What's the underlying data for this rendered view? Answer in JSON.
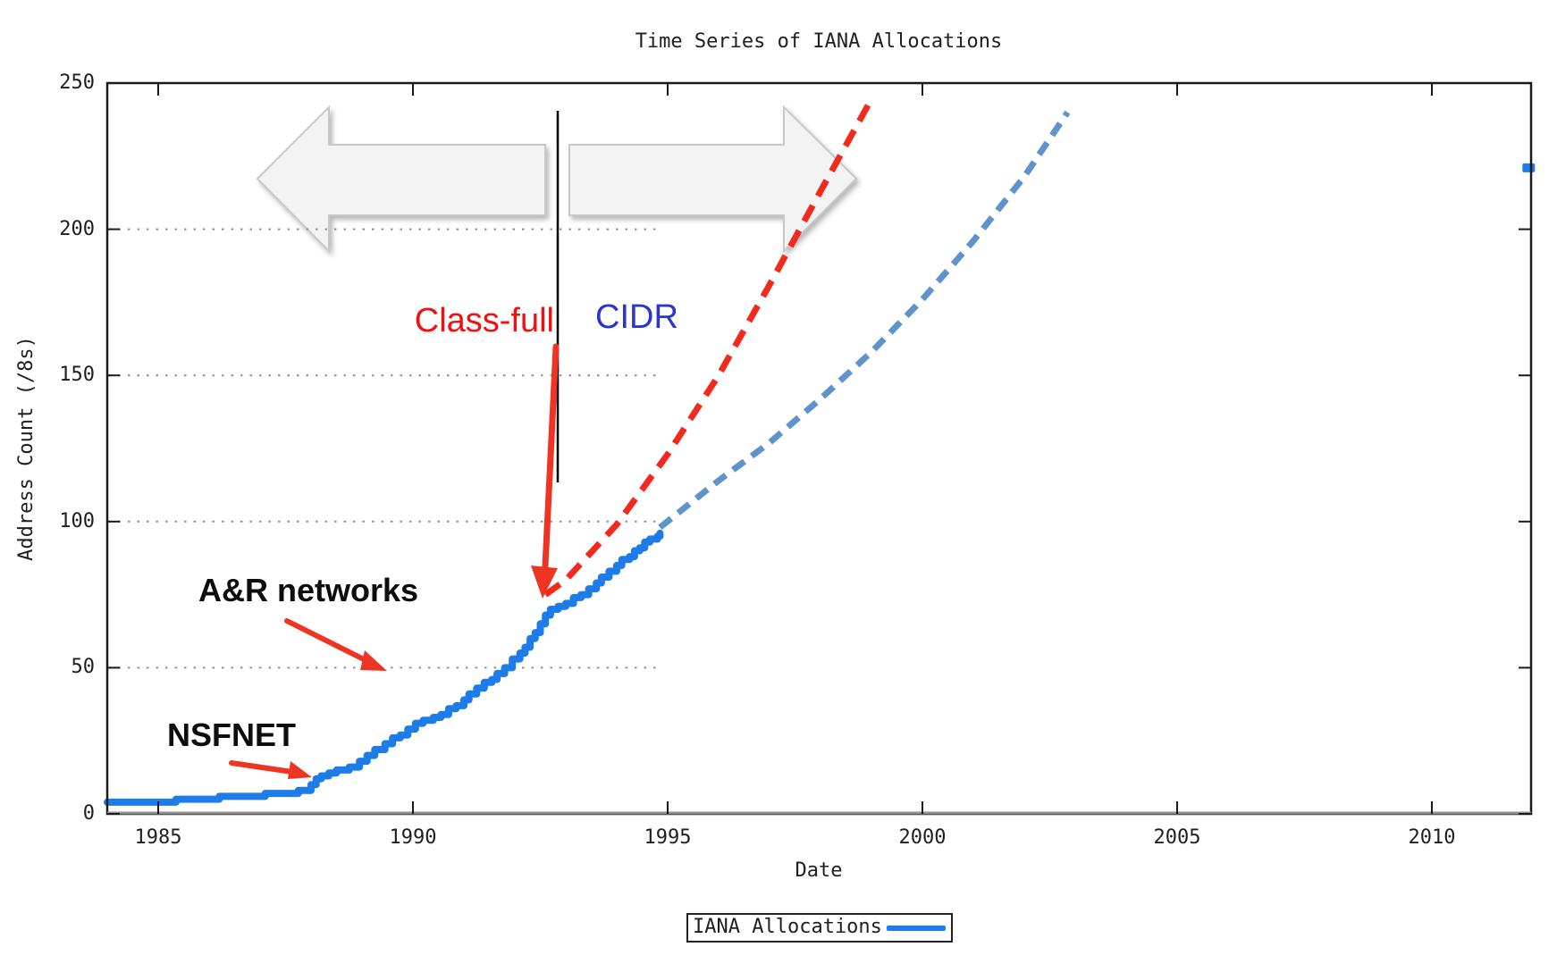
{
  "page": {
    "background": "#ffffff"
  },
  "chart_data": {
    "type": "line",
    "title": "Time Series of IANA Allocations",
    "xlabel": "Date",
    "ylabel": "Address Count (/8s)",
    "xlim": [
      1984,
      2012
    ],
    "ylim": [
      0,
      250
    ],
    "x_ticks": [
      1985,
      1990,
      1995,
      2000,
      2005,
      2010
    ],
    "y_ticks": [
      0,
      50,
      100,
      150,
      200,
      250
    ],
    "y_gridlines": [
      50,
      100,
      150,
      200
    ],
    "grid_style": "dotted horizontal lines, truncated where observed data ends (~1995)",
    "legend_position": "bottom-center-outside",
    "series": [
      {
        "name": "IANA Allocations",
        "style": "step-solid",
        "color": "#1e7ce8",
        "points": [
          [
            1984.0,
            4
          ],
          [
            1985.35,
            5
          ],
          [
            1986.2,
            6
          ],
          [
            1987.1,
            7
          ],
          [
            1987.75,
            8
          ],
          [
            1988.0,
            10
          ],
          [
            1988.1,
            12
          ],
          [
            1988.2,
            13
          ],
          [
            1988.35,
            14
          ],
          [
            1988.5,
            15
          ],
          [
            1988.75,
            16
          ],
          [
            1988.95,
            18
          ],
          [
            1989.1,
            20
          ],
          [
            1989.25,
            22
          ],
          [
            1989.45,
            24
          ],
          [
            1989.6,
            26
          ],
          [
            1989.75,
            27
          ],
          [
            1989.9,
            29
          ],
          [
            1990.05,
            31
          ],
          [
            1990.2,
            32
          ],
          [
            1990.4,
            33
          ],
          [
            1990.55,
            34
          ],
          [
            1990.7,
            36
          ],
          [
            1990.85,
            37
          ],
          [
            1991.0,
            39
          ],
          [
            1991.1,
            41
          ],
          [
            1991.25,
            43
          ],
          [
            1991.4,
            45
          ],
          [
            1991.55,
            46
          ],
          [
            1991.65,
            48
          ],
          [
            1991.8,
            50
          ],
          [
            1991.95,
            53
          ],
          [
            1992.1,
            55
          ],
          [
            1992.2,
            57
          ],
          [
            1992.3,
            60
          ],
          [
            1992.4,
            62
          ],
          [
            1992.5,
            65
          ],
          [
            1992.6,
            68
          ],
          [
            1992.7,
            70
          ],
          [
            1992.85,
            71
          ],
          [
            1993.0,
            72
          ],
          [
            1993.15,
            74
          ],
          [
            1993.3,
            75
          ],
          [
            1993.45,
            77
          ],
          [
            1993.6,
            79
          ],
          [
            1993.7,
            81
          ],
          [
            1993.85,
            83
          ],
          [
            1994.0,
            85
          ],
          [
            1994.1,
            87
          ],
          [
            1994.25,
            88
          ],
          [
            1994.35,
            90
          ],
          [
            1994.45,
            91
          ],
          [
            1994.55,
            93
          ],
          [
            1994.65,
            94
          ],
          [
            1994.8,
            95
          ],
          [
            1994.85,
            96
          ]
        ]
      },
      {
        "name": "Class-full projection",
        "style": "dashed",
        "color": "#f2291d",
        "points": [
          [
            1992.6,
            75
          ],
          [
            1993.0,
            80
          ],
          [
            1994.0,
            99
          ],
          [
            1995.0,
            123
          ],
          [
            1996.0,
            150
          ],
          [
            1997.0,
            181
          ],
          [
            1998.0,
            213
          ],
          [
            1998.95,
            243
          ]
        ]
      },
      {
        "name": "CIDR projection",
        "style": "dashed",
        "color": "#5f93cc",
        "points": [
          [
            1994.85,
            98
          ],
          [
            1996.0,
            114
          ],
          [
            1997.0,
            127
          ],
          [
            1998.0,
            142
          ],
          [
            1999.0,
            158
          ],
          [
            2000.0,
            176
          ],
          [
            2001.0,
            196
          ],
          [
            2002.0,
            218
          ],
          [
            2002.85,
            240
          ]
        ]
      },
      {
        "name": "IANA Allocations (latest isolated mark)",
        "style": "marker",
        "color": "#1e7ce8",
        "points": [
          [
            2011.9,
            221
          ]
        ]
      }
    ],
    "legend": {
      "label": "IANA Allocations",
      "line_color": "#1e7ce8"
    },
    "annotations": {
      "class_full": {
        "text": "Class-full",
        "color": "#f40f0f"
      },
      "cidr": {
        "text": "CIDR",
        "color": "#2a35cf"
      },
      "ar_networks": {
        "text": "A&R networks",
        "color": "#0d0d0d"
      },
      "nsfnet": {
        "text": "NSFNET",
        "color": "#0d0d0d"
      },
      "divider_year": 1992.84,
      "era_arrows": "gray block arrow pointing left (Class-full era) and right (CIDR era)"
    }
  }
}
